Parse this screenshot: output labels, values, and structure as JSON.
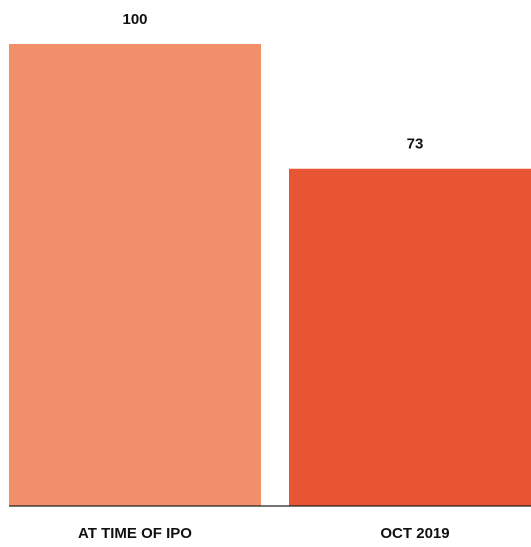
{
  "chart_data": {
    "type": "bar",
    "categories": [
      "AT TIME OF IPO",
      "OCT 2019"
    ],
    "values": [
      100,
      73
    ],
    "data_labels": [
      "100",
      "73"
    ],
    "colors": [
      "#F18F6B",
      "#E85532"
    ],
    "axis_color": "#222222",
    "ylim": [
      0,
      100
    ],
    "grid": false,
    "legend": "none",
    "title": "",
    "xlabel": "",
    "ylabel": ""
  }
}
